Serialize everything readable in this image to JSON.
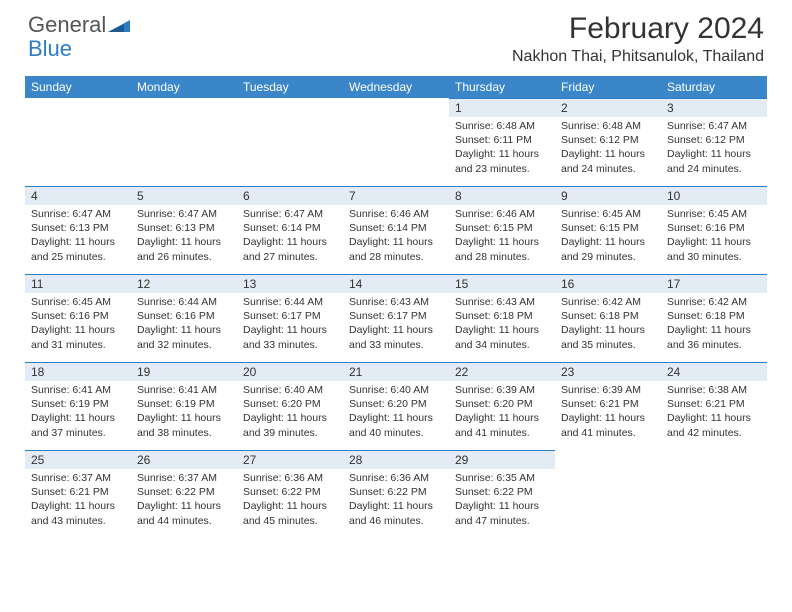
{
  "brand": {
    "part1": "General",
    "part2": "Blue"
  },
  "title": "February 2024",
  "location": "Nakhon Thai, Phitsanulok, Thailand",
  "colors": {
    "header_bg": "#3b86c8",
    "header_text": "#ffffff",
    "daybar_bg": "#e3ecf4",
    "daybar_border": "#2d7dc2",
    "body_text": "#333333",
    "logo_gray": "#555555",
    "logo_blue": "#2d7dc2",
    "page_bg": "#ffffff"
  },
  "weekdays": [
    "Sunday",
    "Monday",
    "Tuesday",
    "Wednesday",
    "Thursday",
    "Friday",
    "Saturday"
  ],
  "weeks": [
    [
      null,
      null,
      null,
      null,
      {
        "num": "1",
        "sunrise": "Sunrise: 6:48 AM",
        "sunset": "Sunset: 6:11 PM",
        "daylight": "Daylight: 11 hours and 23 minutes."
      },
      {
        "num": "2",
        "sunrise": "Sunrise: 6:48 AM",
        "sunset": "Sunset: 6:12 PM",
        "daylight": "Daylight: 11 hours and 24 minutes."
      },
      {
        "num": "3",
        "sunrise": "Sunrise: 6:47 AM",
        "sunset": "Sunset: 6:12 PM",
        "daylight": "Daylight: 11 hours and 24 minutes."
      }
    ],
    [
      {
        "num": "4",
        "sunrise": "Sunrise: 6:47 AM",
        "sunset": "Sunset: 6:13 PM",
        "daylight": "Daylight: 11 hours and 25 minutes."
      },
      {
        "num": "5",
        "sunrise": "Sunrise: 6:47 AM",
        "sunset": "Sunset: 6:13 PM",
        "daylight": "Daylight: 11 hours and 26 minutes."
      },
      {
        "num": "6",
        "sunrise": "Sunrise: 6:47 AM",
        "sunset": "Sunset: 6:14 PM",
        "daylight": "Daylight: 11 hours and 27 minutes."
      },
      {
        "num": "7",
        "sunrise": "Sunrise: 6:46 AM",
        "sunset": "Sunset: 6:14 PM",
        "daylight": "Daylight: 11 hours and 28 minutes."
      },
      {
        "num": "8",
        "sunrise": "Sunrise: 6:46 AM",
        "sunset": "Sunset: 6:15 PM",
        "daylight": "Daylight: 11 hours and 28 minutes."
      },
      {
        "num": "9",
        "sunrise": "Sunrise: 6:45 AM",
        "sunset": "Sunset: 6:15 PM",
        "daylight": "Daylight: 11 hours and 29 minutes."
      },
      {
        "num": "10",
        "sunrise": "Sunrise: 6:45 AM",
        "sunset": "Sunset: 6:16 PM",
        "daylight": "Daylight: 11 hours and 30 minutes."
      }
    ],
    [
      {
        "num": "11",
        "sunrise": "Sunrise: 6:45 AM",
        "sunset": "Sunset: 6:16 PM",
        "daylight": "Daylight: 11 hours and 31 minutes."
      },
      {
        "num": "12",
        "sunrise": "Sunrise: 6:44 AM",
        "sunset": "Sunset: 6:16 PM",
        "daylight": "Daylight: 11 hours and 32 minutes."
      },
      {
        "num": "13",
        "sunrise": "Sunrise: 6:44 AM",
        "sunset": "Sunset: 6:17 PM",
        "daylight": "Daylight: 11 hours and 33 minutes."
      },
      {
        "num": "14",
        "sunrise": "Sunrise: 6:43 AM",
        "sunset": "Sunset: 6:17 PM",
        "daylight": "Daylight: 11 hours and 33 minutes."
      },
      {
        "num": "15",
        "sunrise": "Sunrise: 6:43 AM",
        "sunset": "Sunset: 6:18 PM",
        "daylight": "Daylight: 11 hours and 34 minutes."
      },
      {
        "num": "16",
        "sunrise": "Sunrise: 6:42 AM",
        "sunset": "Sunset: 6:18 PM",
        "daylight": "Daylight: 11 hours and 35 minutes."
      },
      {
        "num": "17",
        "sunrise": "Sunrise: 6:42 AM",
        "sunset": "Sunset: 6:18 PM",
        "daylight": "Daylight: 11 hours and 36 minutes."
      }
    ],
    [
      {
        "num": "18",
        "sunrise": "Sunrise: 6:41 AM",
        "sunset": "Sunset: 6:19 PM",
        "daylight": "Daylight: 11 hours and 37 minutes."
      },
      {
        "num": "19",
        "sunrise": "Sunrise: 6:41 AM",
        "sunset": "Sunset: 6:19 PM",
        "daylight": "Daylight: 11 hours and 38 minutes."
      },
      {
        "num": "20",
        "sunrise": "Sunrise: 6:40 AM",
        "sunset": "Sunset: 6:20 PM",
        "daylight": "Daylight: 11 hours and 39 minutes."
      },
      {
        "num": "21",
        "sunrise": "Sunrise: 6:40 AM",
        "sunset": "Sunset: 6:20 PM",
        "daylight": "Daylight: 11 hours and 40 minutes."
      },
      {
        "num": "22",
        "sunrise": "Sunrise: 6:39 AM",
        "sunset": "Sunset: 6:20 PM",
        "daylight": "Daylight: 11 hours and 41 minutes."
      },
      {
        "num": "23",
        "sunrise": "Sunrise: 6:39 AM",
        "sunset": "Sunset: 6:21 PM",
        "daylight": "Daylight: 11 hours and 41 minutes."
      },
      {
        "num": "24",
        "sunrise": "Sunrise: 6:38 AM",
        "sunset": "Sunset: 6:21 PM",
        "daylight": "Daylight: 11 hours and 42 minutes."
      }
    ],
    [
      {
        "num": "25",
        "sunrise": "Sunrise: 6:37 AM",
        "sunset": "Sunset: 6:21 PM",
        "daylight": "Daylight: 11 hours and 43 minutes."
      },
      {
        "num": "26",
        "sunrise": "Sunrise: 6:37 AM",
        "sunset": "Sunset: 6:22 PM",
        "daylight": "Daylight: 11 hours and 44 minutes."
      },
      {
        "num": "27",
        "sunrise": "Sunrise: 6:36 AM",
        "sunset": "Sunset: 6:22 PM",
        "daylight": "Daylight: 11 hours and 45 minutes."
      },
      {
        "num": "28",
        "sunrise": "Sunrise: 6:36 AM",
        "sunset": "Sunset: 6:22 PM",
        "daylight": "Daylight: 11 hours and 46 minutes."
      },
      {
        "num": "29",
        "sunrise": "Sunrise: 6:35 AM",
        "sunset": "Sunset: 6:22 PM",
        "daylight": "Daylight: 11 hours and 47 minutes."
      },
      null,
      null
    ]
  ]
}
